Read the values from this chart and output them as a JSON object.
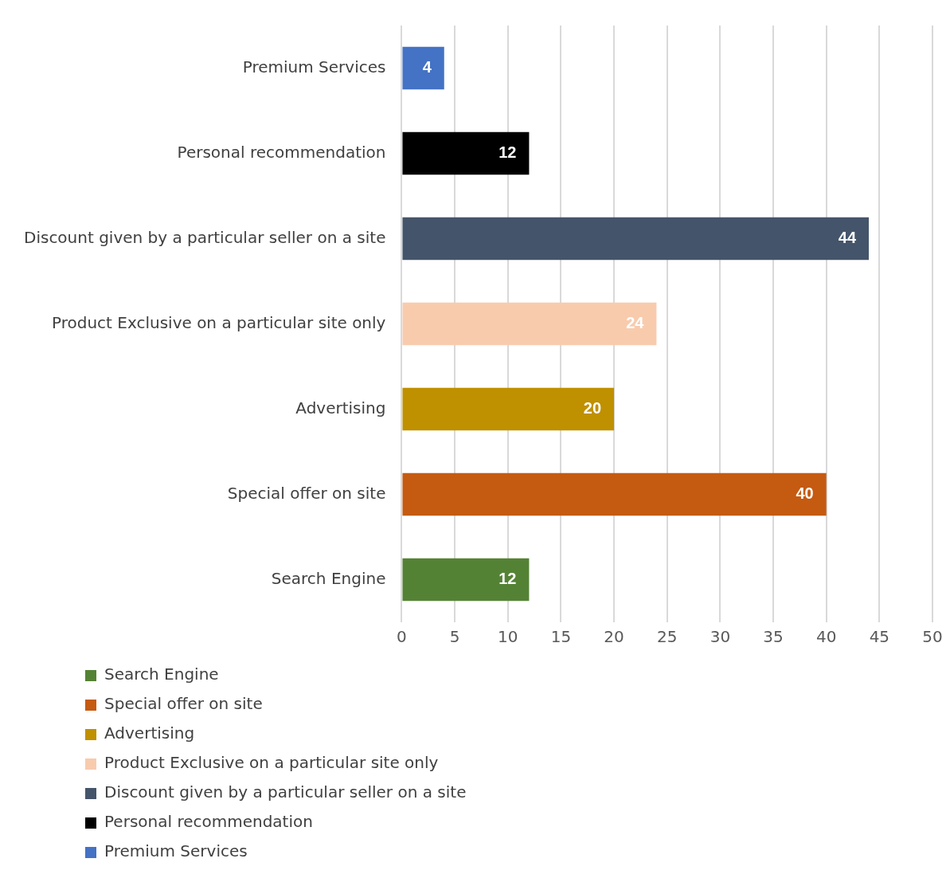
{
  "chart_data": {
    "type": "bar",
    "orientation": "horizontal",
    "categories": [
      "Premium Services",
      "Personal recommendation",
      "Discount given by a particular seller on a site",
      "Product Exclusive on a particular site only",
      "Advertising",
      "Special offer on site",
      "Search Engine"
    ],
    "series": [
      {
        "name": "Search Engine",
        "color": "#548235",
        "values": [
          null,
          null,
          null,
          null,
          null,
          null,
          12
        ]
      },
      {
        "name": "Special offer on site",
        "color": "#c55a11",
        "values": [
          null,
          null,
          null,
          null,
          null,
          40,
          null
        ]
      },
      {
        "name": "Advertising",
        "color": "#bf9000",
        "values": [
          null,
          null,
          null,
          null,
          20,
          null,
          null
        ]
      },
      {
        "name": "Product Exclusive on a particular site only",
        "color": "#f8cbad",
        "values": [
          null,
          null,
          null,
          24,
          null,
          null,
          null
        ]
      },
      {
        "name": "Discount given by a particular seller on a site",
        "color": "#44546a",
        "values": [
          null,
          null,
          44,
          null,
          null,
          null,
          null
        ]
      },
      {
        "name": "Personal recommendation",
        "color": "#000000",
        "values": [
          null,
          12,
          null,
          null,
          null,
          null,
          null
        ]
      },
      {
        "name": "Premium Services",
        "color": "#4472c4",
        "values": [
          4,
          null,
          null,
          null,
          null,
          null,
          null
        ]
      }
    ],
    "xlim": [
      0,
      50
    ],
    "xticks": [
      0,
      5,
      10,
      15,
      20,
      25,
      30,
      35,
      40,
      45,
      50
    ],
    "grid": "x",
    "legend": "bottom",
    "data_labels": true
  }
}
